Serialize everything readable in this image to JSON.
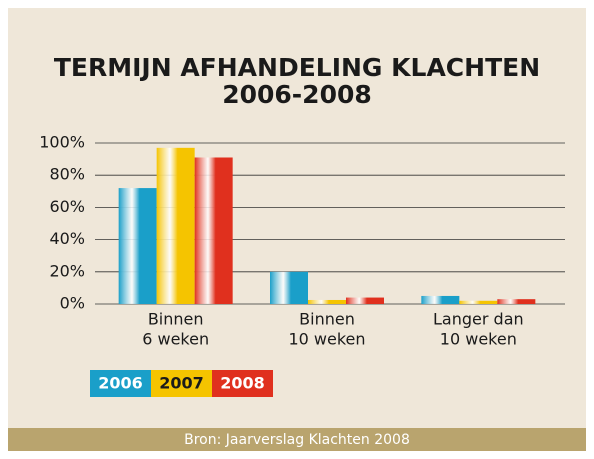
{
  "chart_data": {
    "type": "bar",
    "title": [
      "TERMIJN AFHANDELING KLACHTEN",
      "2006-2008"
    ],
    "categories": [
      [
        "Binnen",
        "6 weken"
      ],
      [
        "Binnen",
        "10 weken"
      ],
      [
        "Langer dan",
        "10 weken"
      ]
    ],
    "series": [
      {
        "name": "2006",
        "color": "#1a9fc9",
        "values": [
          72,
          20,
          5
        ]
      },
      {
        "name": "2007",
        "color": "#f5c400",
        "values": [
          97,
          2.5,
          2
        ]
      },
      {
        "name": "2008",
        "color": "#e0301e",
        "values": [
          91,
          4,
          3
        ]
      }
    ],
    "ylim": [
      0,
      100
    ],
    "yticks": [
      {
        "value": 0,
        "label": "0%"
      },
      {
        "value": 20,
        "label": "20%"
      },
      {
        "value": 40,
        "label": "40%"
      },
      {
        "value": 60,
        "label": "60%"
      },
      {
        "value": 80,
        "label": "80%"
      },
      {
        "value": 100,
        "label": "100%"
      }
    ],
    "grid": true,
    "source": "Bron: Jaarverslag Klachten 2008"
  }
}
